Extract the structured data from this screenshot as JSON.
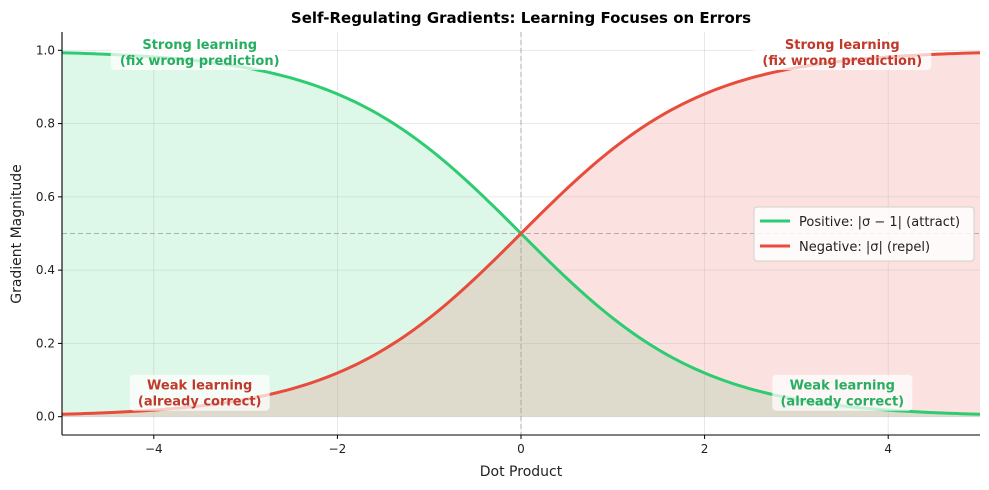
{
  "chart_data": {
    "type": "line",
    "title": "Self-Regulating Gradients: Learning Focuses on Errors",
    "xlabel": "Dot Product",
    "ylabel": "Gradient Magnitude",
    "xlim": [
      -5,
      5
    ],
    "ylim": [
      -0.05,
      1.05
    ],
    "xticks": [
      -4,
      -2,
      0,
      2,
      4
    ],
    "xtick_labels": [
      "−4",
      "−2",
      "0",
      "2",
      "4"
    ],
    "yticks": [
      0.0,
      0.2,
      0.4,
      0.6,
      0.8,
      1.0
    ],
    "ytick_labels": [
      "0.0",
      "0.2",
      "0.4",
      "0.6",
      "0.8",
      "1.0"
    ],
    "grid": true,
    "legend_position": "center right",
    "reference_lines": [
      {
        "orientation": "vertical",
        "value": 0,
        "style": "dashed"
      },
      {
        "orientation": "horizontal",
        "value": 0.5,
        "style": "dashed"
      }
    ],
    "series": [
      {
        "name": "Positive: |σ − 1| (attract)",
        "function": "1 - sigmoid(x)",
        "color": "#2ecc71",
        "fill": "#2ecc71",
        "x": [
          -5,
          -4,
          -3,
          -2,
          -1,
          0,
          1,
          2,
          3,
          4,
          5
        ],
        "values": [
          0.993,
          0.982,
          0.953,
          0.881,
          0.731,
          0.5,
          0.269,
          0.119,
          0.047,
          0.018,
          0.007
        ]
      },
      {
        "name": "Negative: |σ| (repel)",
        "function": "sigmoid(x)",
        "color": "#e74c3c",
        "fill": "#e74c3c",
        "x": [
          -5,
          -4,
          -3,
          -2,
          -1,
          0,
          1,
          2,
          3,
          4,
          5
        ],
        "values": [
          0.007,
          0.018,
          0.047,
          0.119,
          0.269,
          0.5,
          0.731,
          0.881,
          0.953,
          0.982,
          0.993
        ]
      }
    ],
    "annotations": [
      {
        "text": [
          "Strong learning",
          "(fix wrong prediction)"
        ],
        "x": -3.5,
        "y": 0.99,
        "color": "#27ae60"
      },
      {
        "text": [
          "Strong learning",
          "(fix wrong prediction)"
        ],
        "x": 3.5,
        "y": 0.99,
        "color": "#c0392b"
      },
      {
        "text": [
          "Weak learning",
          "(already correct)"
        ],
        "x": -3.5,
        "y": 0.06,
        "color": "#c0392b"
      },
      {
        "text": [
          "Weak learning",
          "(already correct)"
        ],
        "x": 3.5,
        "y": 0.06,
        "color": "#27ae60"
      }
    ]
  }
}
